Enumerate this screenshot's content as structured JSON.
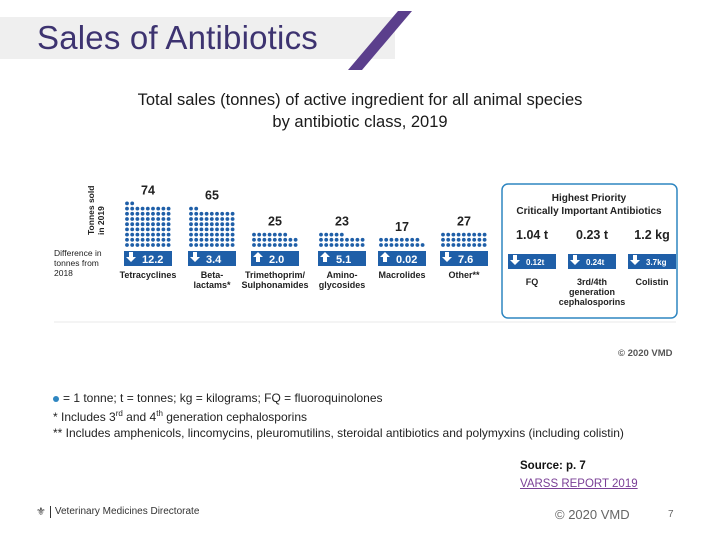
{
  "slide": {
    "title": "Sales of Antibiotics",
    "subtitle_line1": "Total sales (tonnes) of active ingredient for all animal species",
    "subtitle_line2": "by antibiotic class, 2019",
    "chart_copyright": "© 2020 VMD",
    "footnotes": {
      "legend": "= 1 tonne; t = tonnes; kg = kilograms; FQ = fluoroquinolones",
      "note1_pre": "* Includes 3",
      "note1_sup1": "rd",
      "note1_mid": " and 4",
      "note1_sup2": "th",
      "note1_post": " generation cephalosporins",
      "note2": "** Includes amphenicols, lincomycins, pleuromutilins, steroidal antibiotics and polymyxins  (including colistin)"
    },
    "source_label": "Source: p. 7",
    "report_link": "VARSS REPORT 2019",
    "footer_org": "Veterinary Medicines Directorate",
    "footer_copyright": "© 2020 VMD",
    "page_number": "7"
  },
  "colors": {
    "title": "#3d3370",
    "accent_purple": "#5b3f8c",
    "bar_blue": "#1f5fa8",
    "box_border": "#2e86c1",
    "text": "#1a1a1a"
  },
  "chart_data": {
    "type": "bar",
    "title": "Total sales (tonnes) of active ingredient for all animal species by antibiotic class, 2019",
    "ylabel": "Tonnes sold in 2019",
    "difference_label": "Difference in tonnes from 2018",
    "categories": [
      "Tetracyclines",
      "Beta-lactams*",
      "Trimethoprim/Sulphonamides",
      "Aminoglycosides",
      "Macrolides",
      "Other**"
    ],
    "category_label_lines": [
      [
        "Tetracyclines"
      ],
      [
        "Beta-",
        "lactams*"
      ],
      [
        "Trimethoprim/",
        "Sulphonamides"
      ],
      [
        "Amino-",
        "glycosides"
      ],
      [
        "Macrolides"
      ],
      [
        "Other**"
      ]
    ],
    "values": [
      74,
      65,
      25,
      23,
      17,
      27
    ],
    "differences": [
      12.2,
      3.4,
      2.0,
      5.1,
      0.02,
      7.6
    ],
    "difference_direction": [
      "down",
      "down",
      "up",
      "up",
      "up",
      "down"
    ],
    "units": "tonnes",
    "hpcia": {
      "title_line1": "Highest Priority",
      "title_line2": "Critically Important Antibiotics",
      "categories": [
        "FQ",
        "3rd/4th generation cephalosporins",
        "Colistin"
      ],
      "category_label_lines": [
        [
          "FQ"
        ],
        [
          "3rd/4th",
          "generation",
          "cephalosporins"
        ],
        [
          "Colistin"
        ]
      ],
      "sales": [
        "1.04 t",
        "0.23 t",
        "1.2 kg"
      ],
      "differences": [
        "0.12t",
        "0.24t",
        "3.7kg"
      ],
      "difference_direction": [
        "down",
        "down",
        "down"
      ]
    }
  }
}
